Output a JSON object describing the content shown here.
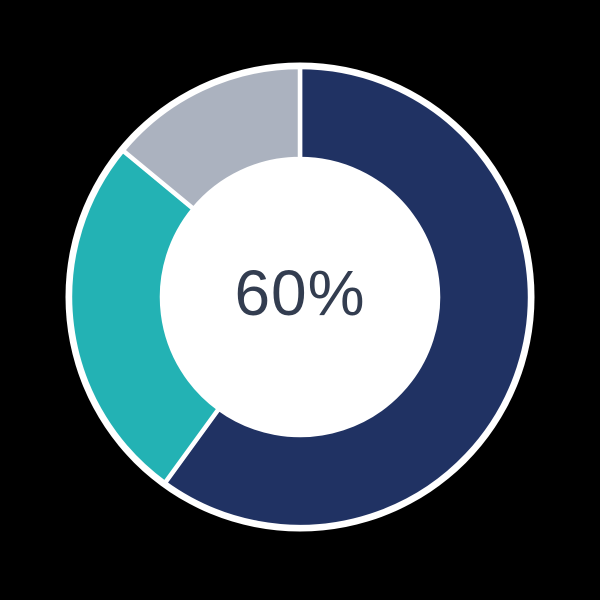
{
  "chart_data": {
    "type": "pie",
    "variant": "donut",
    "title": "",
    "center_label": "60%",
    "segments": [
      {
        "name": "navy",
        "value": 60,
        "color": "#203263"
      },
      {
        "name": "teal",
        "value": 26,
        "color": "#23B2B4"
      },
      {
        "name": "gray",
        "value": 14,
        "color": "#ABB2BF"
      }
    ],
    "start_angle_deg": 0,
    "direction": "clockwise",
    "donut_hole_ratio": 0.6,
    "gap_color": "#FFFFFF",
    "legend": "none"
  },
  "canvas": {
    "background": "#000000",
    "center_label_color": "#333D50"
  }
}
